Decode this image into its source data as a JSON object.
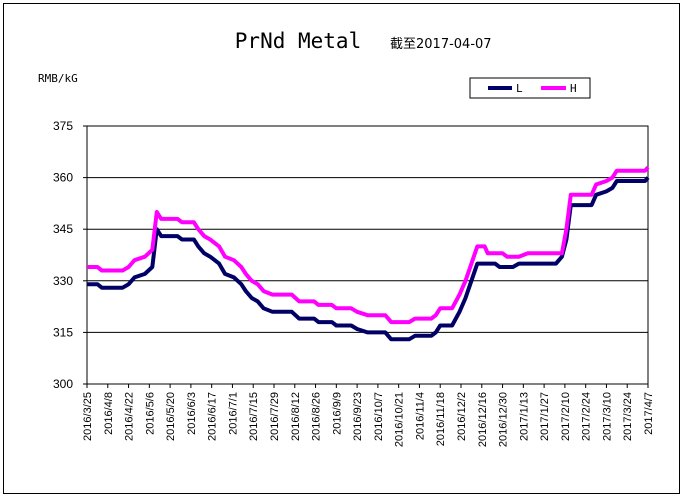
{
  "chart_data": {
    "type": "line",
    "title": "PrNd Metal",
    "subtitle": "截至2017-04-07",
    "ylabel": "RMB/kG",
    "ylim": [
      300,
      375
    ],
    "yticks": [
      300,
      315,
      330,
      345,
      360,
      375
    ],
    "grid": "horizontal",
    "legend_position": "top-right",
    "x_tick_labels": [
      "2016/3/25",
      "2016/4/8",
      "2016/4/22",
      "2016/5/6",
      "2016/5/20",
      "2016/6/3",
      "2016/6/17",
      "2016/7/1",
      "2016/7/15",
      "2016/7/29",
      "2016/8/12",
      "2016/8/26",
      "2016/9/9",
      "2016/9/23",
      "2016/10/7",
      "2016/10/21",
      "2016/11/4",
      "2016/11/18",
      "2016/12/2",
      "2016/12/16",
      "2016/12/30",
      "2017/1/13",
      "2017/1/27",
      "2017/2/10",
      "2017/2/24",
      "2017/3/10",
      "2017/3/24",
      "2017/4/7"
    ],
    "series": [
      {
        "name": "L",
        "color": "#000066",
        "points": [
          [
            "2016/3/25",
            329
          ],
          [
            "2016/4/1",
            329
          ],
          [
            "2016/4/4",
            328
          ],
          [
            "2016/4/18",
            328
          ],
          [
            "2016/4/22",
            329
          ],
          [
            "2016/4/26",
            331
          ],
          [
            "2016/5/3",
            332
          ],
          [
            "2016/5/8",
            334
          ],
          [
            "2016/5/11",
            345
          ],
          [
            "2016/5/14",
            343
          ],
          [
            "2016/5/25",
            343
          ],
          [
            "2016/5/28",
            342
          ],
          [
            "2016/6/5",
            342
          ],
          [
            "2016/6/8",
            340
          ],
          [
            "2016/6/12",
            338
          ],
          [
            "2016/6/16",
            337
          ],
          [
            "2016/6/22",
            335
          ],
          [
            "2016/6/26",
            332
          ],
          [
            "2016/7/2",
            331
          ],
          [
            "2016/7/7",
            329
          ],
          [
            "2016/7/10",
            327
          ],
          [
            "2016/7/14",
            325
          ],
          [
            "2016/7/18",
            324
          ],
          [
            "2016/7/22",
            322
          ],
          [
            "2016/7/28",
            321
          ],
          [
            "2016/8/10",
            321
          ],
          [
            "2016/8/15",
            319
          ],
          [
            "2016/8/25",
            319
          ],
          [
            "2016/8/28",
            318
          ],
          [
            "2016/9/6",
            318
          ],
          [
            "2016/9/9",
            317
          ],
          [
            "2016/9/19",
            317
          ],
          [
            "2016/9/23",
            316
          ],
          [
            "2016/9/30",
            315
          ],
          [
            "2016/10/12",
            315
          ],
          [
            "2016/10/16",
            313
          ],
          [
            "2016/10/28",
            313
          ],
          [
            "2016/11/1",
            314
          ],
          [
            "2016/11/12",
            314
          ],
          [
            "2016/11/15",
            315
          ],
          [
            "2016/11/18",
            317
          ],
          [
            "2016/11/26",
            317
          ],
          [
            "2016/12/1",
            321
          ],
          [
            "2016/12/5",
            325
          ],
          [
            "2016/12/9",
            330
          ],
          [
            "2016/12/13",
            335
          ],
          [
            "2016/12/25",
            335
          ],
          [
            "2016/12/28",
            334
          ],
          [
            "2017/1/6",
            334
          ],
          [
            "2017/1/10",
            335
          ],
          [
            "2017/2/4",
            335
          ],
          [
            "2017/2/8",
            337
          ],
          [
            "2017/2/11",
            342
          ],
          [
            "2017/2/14",
            352
          ],
          [
            "2017/2/28",
            352
          ],
          [
            "2017/3/3",
            355
          ],
          [
            "2017/3/10",
            356
          ],
          [
            "2017/3/14",
            357
          ],
          [
            "2017/3/17",
            359
          ],
          [
            "2017/4/5",
            359
          ],
          [
            "2017/4/7",
            360
          ]
        ]
      },
      {
        "name": "H",
        "color": "#ff00ff",
        "points": [
          [
            "2016/3/25",
            334
          ],
          [
            "2016/4/1",
            334
          ],
          [
            "2016/4/4",
            333
          ],
          [
            "2016/4/18",
            333
          ],
          [
            "2016/4/22",
            334
          ],
          [
            "2016/4/26",
            336
          ],
          [
            "2016/5/3",
            337
          ],
          [
            "2016/5/8",
            339
          ],
          [
            "2016/5/11",
            350
          ],
          [
            "2016/5/14",
            348
          ],
          [
            "2016/5/25",
            348
          ],
          [
            "2016/5/28",
            347
          ],
          [
            "2016/6/5",
            347
          ],
          [
            "2016/6/8",
            345
          ],
          [
            "2016/6/12",
            343
          ],
          [
            "2016/6/16",
            342
          ],
          [
            "2016/6/22",
            340
          ],
          [
            "2016/6/26",
            337
          ],
          [
            "2016/7/2",
            336
          ],
          [
            "2016/7/7",
            334
          ],
          [
            "2016/7/10",
            332
          ],
          [
            "2016/7/14",
            330
          ],
          [
            "2016/7/18",
            329
          ],
          [
            "2016/7/22",
            327
          ],
          [
            "2016/7/28",
            326
          ],
          [
            "2016/8/10",
            326
          ],
          [
            "2016/8/15",
            324
          ],
          [
            "2016/8/25",
            324
          ],
          [
            "2016/8/28",
            323
          ],
          [
            "2016/9/6",
            323
          ],
          [
            "2016/9/9",
            322
          ],
          [
            "2016/9/19",
            322
          ],
          [
            "2016/9/23",
            321
          ],
          [
            "2016/9/30",
            320
          ],
          [
            "2016/10/12",
            320
          ],
          [
            "2016/10/16",
            318
          ],
          [
            "2016/10/28",
            318
          ],
          [
            "2016/11/1",
            319
          ],
          [
            "2016/11/12",
            319
          ],
          [
            "2016/11/15",
            320
          ],
          [
            "2016/11/18",
            322
          ],
          [
            "2016/11/26",
            322
          ],
          [
            "2016/12/1",
            326
          ],
          [
            "2016/12/5",
            330
          ],
          [
            "2016/12/9",
            335
          ],
          [
            "2016/12/13",
            340
          ],
          [
            "2016/12/18",
            340
          ],
          [
            "2016/12/20",
            338
          ],
          [
            "2016/12/30",
            338
          ],
          [
            "2017/1/2",
            337
          ],
          [
            "2017/1/10",
            337
          ],
          [
            "2017/1/16",
            338
          ],
          [
            "2017/2/8",
            338
          ],
          [
            "2017/2/11",
            345
          ],
          [
            "2017/2/14",
            355
          ],
          [
            "2017/2/28",
            355
          ],
          [
            "2017/3/3",
            358
          ],
          [
            "2017/3/10",
            359
          ],
          [
            "2017/3/14",
            360
          ],
          [
            "2017/3/17",
            362
          ],
          [
            "2017/4/5",
            362
          ],
          [
            "2017/4/7",
            363
          ]
        ]
      }
    ]
  }
}
